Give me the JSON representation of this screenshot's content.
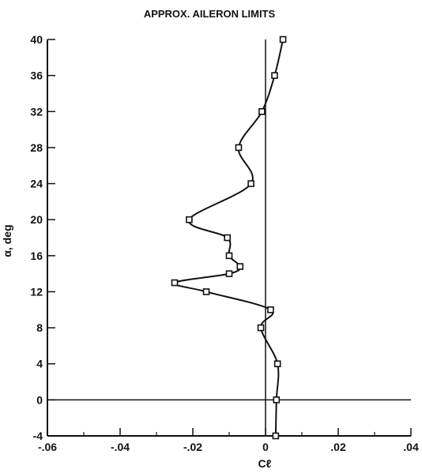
{
  "chart_data": {
    "type": "line",
    "title": "APPROX. AILERON LIMITS",
    "xlabel": "Cℓ",
    "ylabel": "α, deg",
    "xlim": [
      -0.06,
      0.04
    ],
    "ylim": [
      -4,
      40
    ],
    "x_ticks": [
      -0.06,
      -0.04,
      -0.02,
      0,
      0.02,
      0.04
    ],
    "x_tick_labels": [
      "-.06",
      "-.04",
      "-.02",
      "0",
      ".02",
      ".04"
    ],
    "y_ticks": [
      -4,
      0,
      4,
      8,
      12,
      16,
      20,
      24,
      28,
      32,
      36,
      40
    ],
    "y_tick_labels": [
      "-4",
      "0",
      "4",
      "8",
      "12",
      "16",
      "20",
      "24",
      "28",
      "32",
      "36",
      "40"
    ],
    "grid": false,
    "series": [
      {
        "marker": "square",
        "points": [
          {
            "x": 0.0028,
            "y": -4
          },
          {
            "x": 0.003,
            "y": 0
          },
          {
            "x": 0.0033,
            "y": 4
          },
          {
            "x": -0.0013,
            "y": 8
          },
          {
            "x": 0.0014,
            "y": 10
          },
          {
            "x": -0.0163,
            "y": 12
          },
          {
            "x": -0.025,
            "y": 13
          },
          {
            "x": -0.01,
            "y": 14
          },
          {
            "x": -0.007,
            "y": 14.8
          },
          {
            "x": -0.01,
            "y": 16
          },
          {
            "x": -0.0105,
            "y": 18
          },
          {
            "x": -0.021,
            "y": 20
          },
          {
            "x": -0.004,
            "y": 24
          },
          {
            "x": -0.0074,
            "y": 28
          },
          {
            "x": -0.001,
            "y": 32
          },
          {
            "x": 0.0025,
            "y": 36
          },
          {
            "x": 0.0048,
            "y": 40
          }
        ]
      }
    ]
  }
}
